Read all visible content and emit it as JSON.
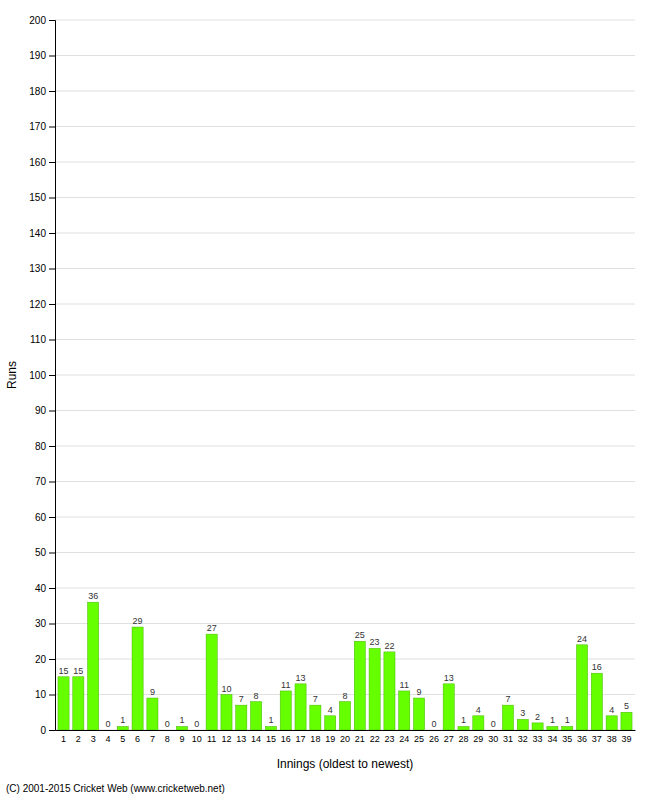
{
  "chart_data": {
    "type": "bar",
    "xlabel": "Innings (oldest to newest)",
    "ylabel": "Runs",
    "categories": [
      "1",
      "2",
      "3",
      "4",
      "5",
      "6",
      "7",
      "8",
      "9",
      "10",
      "11",
      "12",
      "13",
      "14",
      "15",
      "16",
      "17",
      "18",
      "19",
      "20",
      "21",
      "22",
      "23",
      "24",
      "25",
      "26",
      "27",
      "28",
      "29",
      "30",
      "31",
      "32",
      "33",
      "34",
      "35",
      "36",
      "37",
      "38",
      "39"
    ],
    "values": [
      15,
      15,
      36,
      0,
      1,
      29,
      9,
      0,
      1,
      0,
      27,
      10,
      7,
      8,
      1,
      11,
      13,
      7,
      4,
      8,
      25,
      23,
      22,
      11,
      9,
      0,
      13,
      1,
      4,
      0,
      7,
      3,
      2,
      1,
      1,
      24,
      16,
      4,
      5
    ],
    "color": "#66ff00",
    "ylim": [
      0,
      200
    ],
    "yticks": [
      0,
      10,
      20,
      30,
      40,
      50,
      60,
      70,
      80,
      90,
      100,
      110,
      120,
      130,
      140,
      150,
      160,
      170,
      180,
      190,
      200
    ],
    "grid": true,
    "data_labels": true,
    "annotations": [
      "(C) 2001-2015 Cricket Web (www.cricketweb.net)"
    ]
  }
}
